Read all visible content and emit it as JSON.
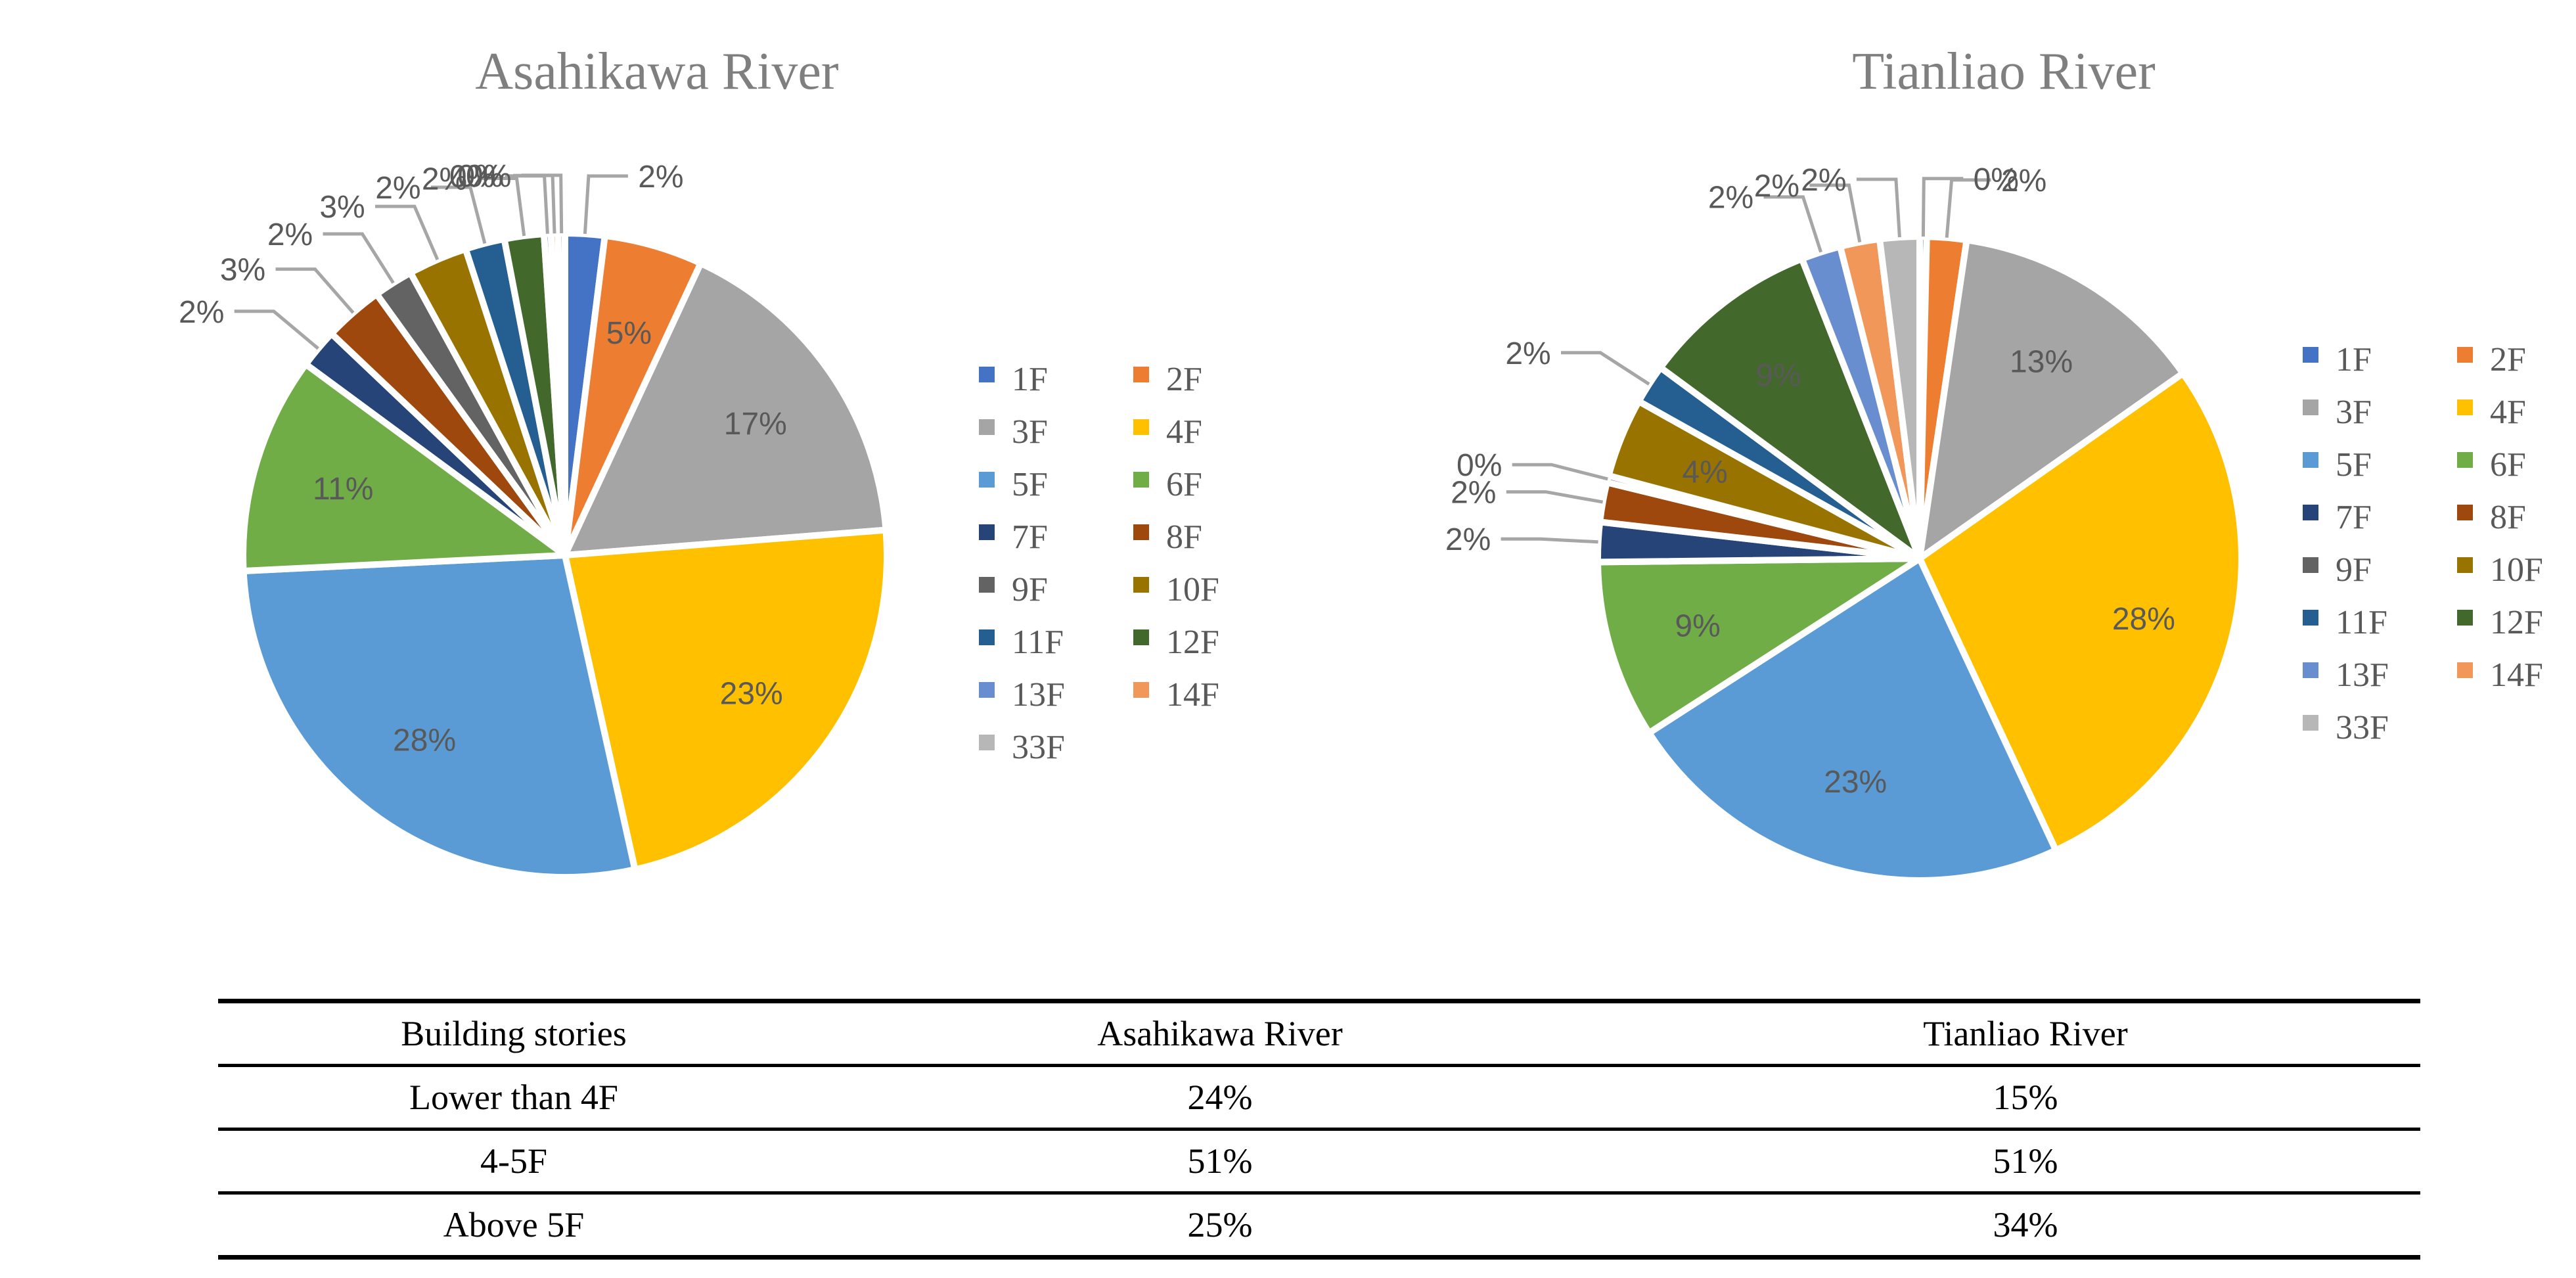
{
  "chart_data": [
    {
      "type": "pie",
      "title": "Asahikawa River",
      "categories": [
        "1F",
        "2F",
        "3F",
        "4F",
        "5F",
        "6F",
        "7F",
        "8F",
        "9F",
        "10F",
        "11F",
        "12F",
        "13F",
        "14F",
        "33F"
      ],
      "values": [
        2,
        5,
        17,
        23,
        28,
        11,
        2,
        3,
        2,
        3,
        2,
        2,
        0,
        0,
        0
      ],
      "labels": [
        "2%",
        "5%",
        "17%",
        "23%",
        "28%",
        "11%",
        "2%",
        "3%",
        "2%",
        "3%",
        "2%",
        "2%",
        "0%",
        "0%",
        "0%"
      ],
      "legend_position": "right"
    },
    {
      "type": "pie",
      "title": "Tianliao River",
      "categories": [
        "1F",
        "2F",
        "3F",
        "4F",
        "5F",
        "6F",
        "7F",
        "8F",
        "9F",
        "10F",
        "11F",
        "12F",
        "13F",
        "14F",
        "33F"
      ],
      "values": [
        0,
        2,
        13,
        28,
        23,
        9,
        2,
        2,
        0,
        4,
        2,
        9,
        2,
        2,
        2
      ],
      "labels": [
        "0%",
        "2%",
        "13%",
        "28%",
        "23%",
        "9%",
        "2%",
        "2%",
        "0%",
        "4%",
        "2%",
        "9%",
        "2%",
        "2%",
        "2%"
      ],
      "legend_position": "right"
    }
  ],
  "colors": [
    "#4472c4",
    "#ed7d31",
    "#a5a5a5",
    "#ffc000",
    "#5b9bd5",
    "#70ad47",
    "#264478",
    "#9e480e",
    "#636363",
    "#997300",
    "#255e91",
    "#43682b",
    "#698ed0",
    "#f1975a",
    "#b7b7b7"
  ],
  "table": {
    "headers": [
      "Building stories",
      "Asahikawa River",
      "Tianliao River"
    ],
    "rows": [
      [
        "Lower than 4F",
        "24%",
        "15%"
      ],
      [
        "4-5F",
        "51%",
        "51%"
      ],
      [
        "Above 5F",
        "25%",
        "34%"
      ]
    ]
  }
}
